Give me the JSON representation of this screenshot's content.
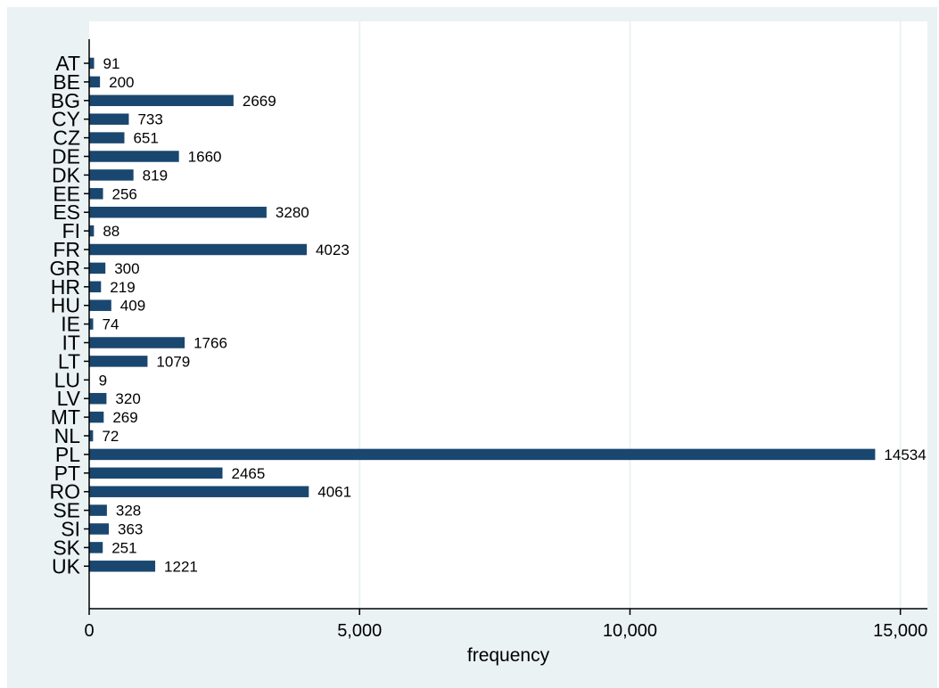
{
  "chart_data": {
    "type": "bar",
    "orientation": "horizontal",
    "title": "",
    "xlabel": "frequency",
    "ylabel": "",
    "categories": [
      "AT",
      "BE",
      "BG",
      "CY",
      "CZ",
      "DE",
      "DK",
      "EE",
      "ES",
      "FI",
      "FR",
      "GR",
      "HR",
      "HU",
      "IE",
      "IT",
      "LT",
      "LU",
      "LV",
      "MT",
      "NL",
      "PL",
      "PT",
      "RO",
      "SE",
      "SI",
      "SK",
      "UK"
    ],
    "values": [
      91,
      200,
      2669,
      733,
      651,
      1660,
      819,
      256,
      3280,
      88,
      4023,
      300,
      219,
      409,
      74,
      1766,
      1079,
      9,
      320,
      269,
      72,
      14534,
      2465,
      4061,
      328,
      363,
      251,
      1221
    ],
    "xlim": [
      0,
      15500
    ],
    "xticks": [
      0,
      5000,
      10000,
      15000
    ],
    "xtick_labels": [
      "0",
      "5,000",
      "10,000",
      "15,000"
    ],
    "grid": true,
    "legend": "none",
    "data_labels": true
  },
  "colors": {
    "bar": "#1a476f",
    "outer_background": "#eaf2f3",
    "plot_background": "#ffffff",
    "grid": "#eaf2f3"
  }
}
